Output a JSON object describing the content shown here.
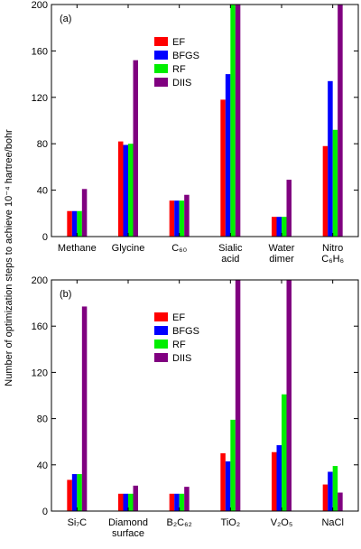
{
  "chart_data": [
    {
      "type": "bar",
      "panel_label": "(a)",
      "ylabel": "Number of optimization steps to achieve 10⁻⁴ hartree/bohr",
      "categories": [
        "Methane",
        "Glycine",
        "C₆₀",
        "Sialic\nacid",
        "Water\ndimer",
        "Nitro\nC₆H₆"
      ],
      "series": [
        {
          "name": "EF",
          "color": "#ff0000",
          "values": [
            22,
            82,
            31,
            118,
            17,
            78
          ]
        },
        {
          "name": "BFGS",
          "color": "#0000ff",
          "values": [
            22,
            79,
            31,
            140,
            17,
            134
          ]
        },
        {
          "name": "RF",
          "color": "#00ee00",
          "values": [
            22,
            80,
            31,
            200,
            17,
            92
          ]
        },
        {
          "name": "DIIS",
          "color": "#800080",
          "values": [
            41,
            152,
            36,
            200,
            49,
            200
          ]
        }
      ],
      "ylim": [
        0,
        200
      ],
      "yticks": [
        0,
        40,
        80,
        120,
        160,
        200
      ],
      "legend": "upper center"
    },
    {
      "type": "bar",
      "panel_label": "(b)",
      "categories": [
        "Si₇C",
        "Diamond\nsurface",
        "B₂C₆₂",
        "TiO₂",
        "V₂O₅",
        "NaCl"
      ],
      "series": [
        {
          "name": "EF",
          "color": "#ff0000",
          "values": [
            27,
            15,
            15,
            50,
            51,
            23
          ]
        },
        {
          "name": "BFGS",
          "color": "#0000ff",
          "values": [
            32,
            15,
            15,
            43,
            57,
            34
          ]
        },
        {
          "name": "RF",
          "color": "#00ee00",
          "values": [
            32,
            15,
            15,
            79,
            101,
            39
          ]
        },
        {
          "name": "DIIS",
          "color": "#800080",
          "values": [
            177,
            22,
            21,
            200,
            200,
            16
          ]
        }
      ],
      "ylim": [
        0,
        200
      ],
      "yticks": [
        0,
        40,
        80,
        120,
        160,
        200
      ],
      "legend": "upper center"
    }
  ]
}
